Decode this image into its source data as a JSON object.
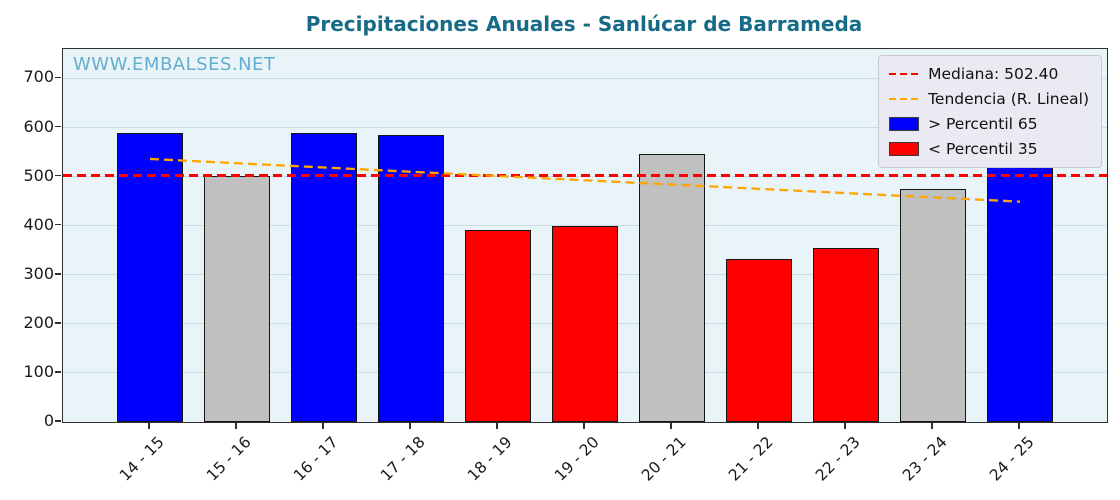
{
  "title": "Precipitaciones Anuales - Sanlúcar de Barrameda",
  "watermark": "WWW.EMBALSES.NET",
  "colors": {
    "title": "#176b87",
    "watermark": "#64aecd",
    "plot_bg": "#e9f4f9",
    "grid": "#ccdce4",
    "spine": "#2f2f2f",
    "bar_above": "#0000ff",
    "bar_below": "#ff0000",
    "bar_neutral": "#c0c0c0",
    "bar_edge": "#161616",
    "median": "#ff0000",
    "trend": "#ffa500",
    "legend_bg": "#eaeaf2",
    "legend_border": "#c9c9d4"
  },
  "chart_data": {
    "type": "bar",
    "title": "Precipitaciones Anuales - Sanlúcar de Barrameda",
    "categories": [
      "14 - 15",
      "15 - 16",
      "16 - 17",
      "17 - 18",
      "18 - 19",
      "19 - 20",
      "20 - 21",
      "21 - 22",
      "22 - 23",
      "23 - 24",
      "24 - 25"
    ],
    "values": [
      588,
      501,
      588,
      584,
      392,
      400,
      546,
      333,
      355,
      474,
      634
    ],
    "bar_classes": [
      "above",
      "neutral",
      "above",
      "above",
      "below",
      "below",
      "neutral",
      "below",
      "below",
      "neutral",
      "above"
    ],
    "ylim": [
      0,
      760
    ],
    "yticks": [
      0,
      100,
      200,
      300,
      400,
      500,
      600,
      700
    ],
    "median": 502.4,
    "trend": {
      "start": 536,
      "end": 449
    },
    "grid": "horizontal",
    "legend_position": "top-right",
    "legend": [
      {
        "label": "Mediana: 502.40",
        "swatch": "dashed-line",
        "color_key": "median"
      },
      {
        "label": "Tendencia (R. Lineal)",
        "swatch": "dashed-line",
        "color_key": "trend"
      },
      {
        "label": "> Percentil 65",
        "swatch": "box",
        "color_key": "bar_above"
      },
      {
        "label": "< Percentil 35",
        "swatch": "box",
        "color_key": "bar_below"
      }
    ]
  }
}
